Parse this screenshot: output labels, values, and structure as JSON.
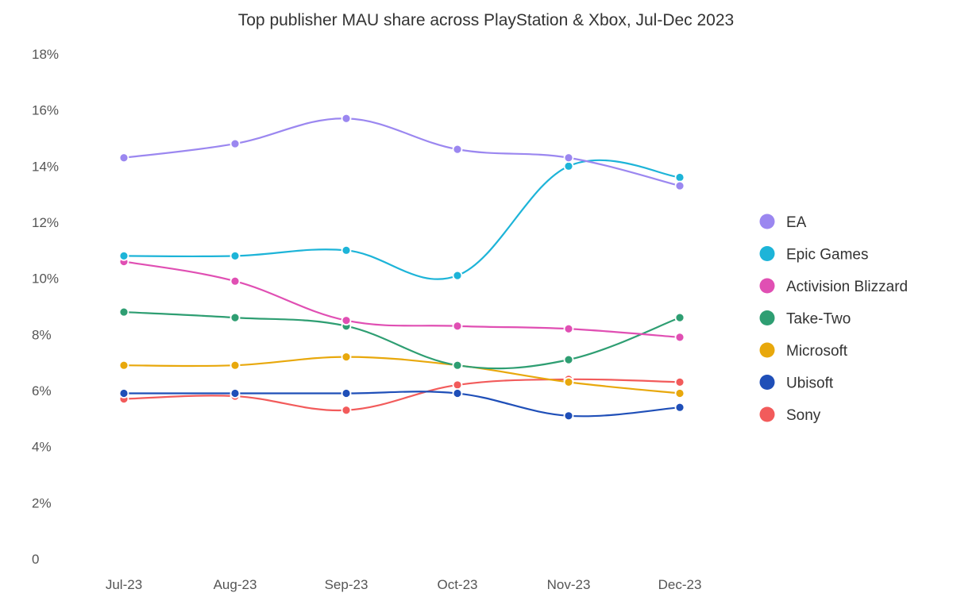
{
  "chart_data": {
    "type": "line",
    "title": "Top publisher MAU share across PlayStation & Xbox, Jul-Dec 2023",
    "xlabel": "",
    "ylabel": "",
    "categories": [
      "Jul-23",
      "Aug-23",
      "Sep-23",
      "Oct-23",
      "Nov-23",
      "Dec-23"
    ],
    "ylim": [
      0,
      18
    ],
    "yticks": [
      0,
      2,
      4,
      6,
      8,
      10,
      12,
      14,
      16,
      18
    ],
    "ytick_labels": [
      "0",
      "2%",
      "4%",
      "6%",
      "8%",
      "10%",
      "12%",
      "14%",
      "16%",
      "18%"
    ],
    "grid": false,
    "legend_position": "right",
    "series": [
      {
        "name": "EA",
        "color": "#9b87f0",
        "values": [
          14.3,
          14.8,
          15.7,
          14.6,
          14.3,
          13.3
        ]
      },
      {
        "name": "Epic Games",
        "color": "#1db4d8",
        "values": [
          10.8,
          10.8,
          11.0,
          10.1,
          14.0,
          13.6
        ]
      },
      {
        "name": "Activision Blizzard",
        "color": "#e04fb3",
        "values": [
          10.6,
          9.9,
          8.5,
          8.3,
          8.2,
          7.9
        ]
      },
      {
        "name": "Take-Two",
        "color": "#2e9e72",
        "values": [
          8.8,
          8.6,
          8.3,
          6.9,
          7.1,
          8.6
        ]
      },
      {
        "name": "Microsoft",
        "color": "#e8a80c",
        "values": [
          6.9,
          6.9,
          7.2,
          6.9,
          6.3,
          5.9
        ]
      },
      {
        "name": "Ubisoft",
        "color": "#1f4fb8",
        "values": [
          5.9,
          5.9,
          5.9,
          5.9,
          5.1,
          5.4
        ]
      },
      {
        "name": "Sony",
        "color": "#f25b5b",
        "values": [
          5.7,
          5.8,
          5.3,
          6.2,
          6.4,
          6.3
        ]
      }
    ]
  }
}
